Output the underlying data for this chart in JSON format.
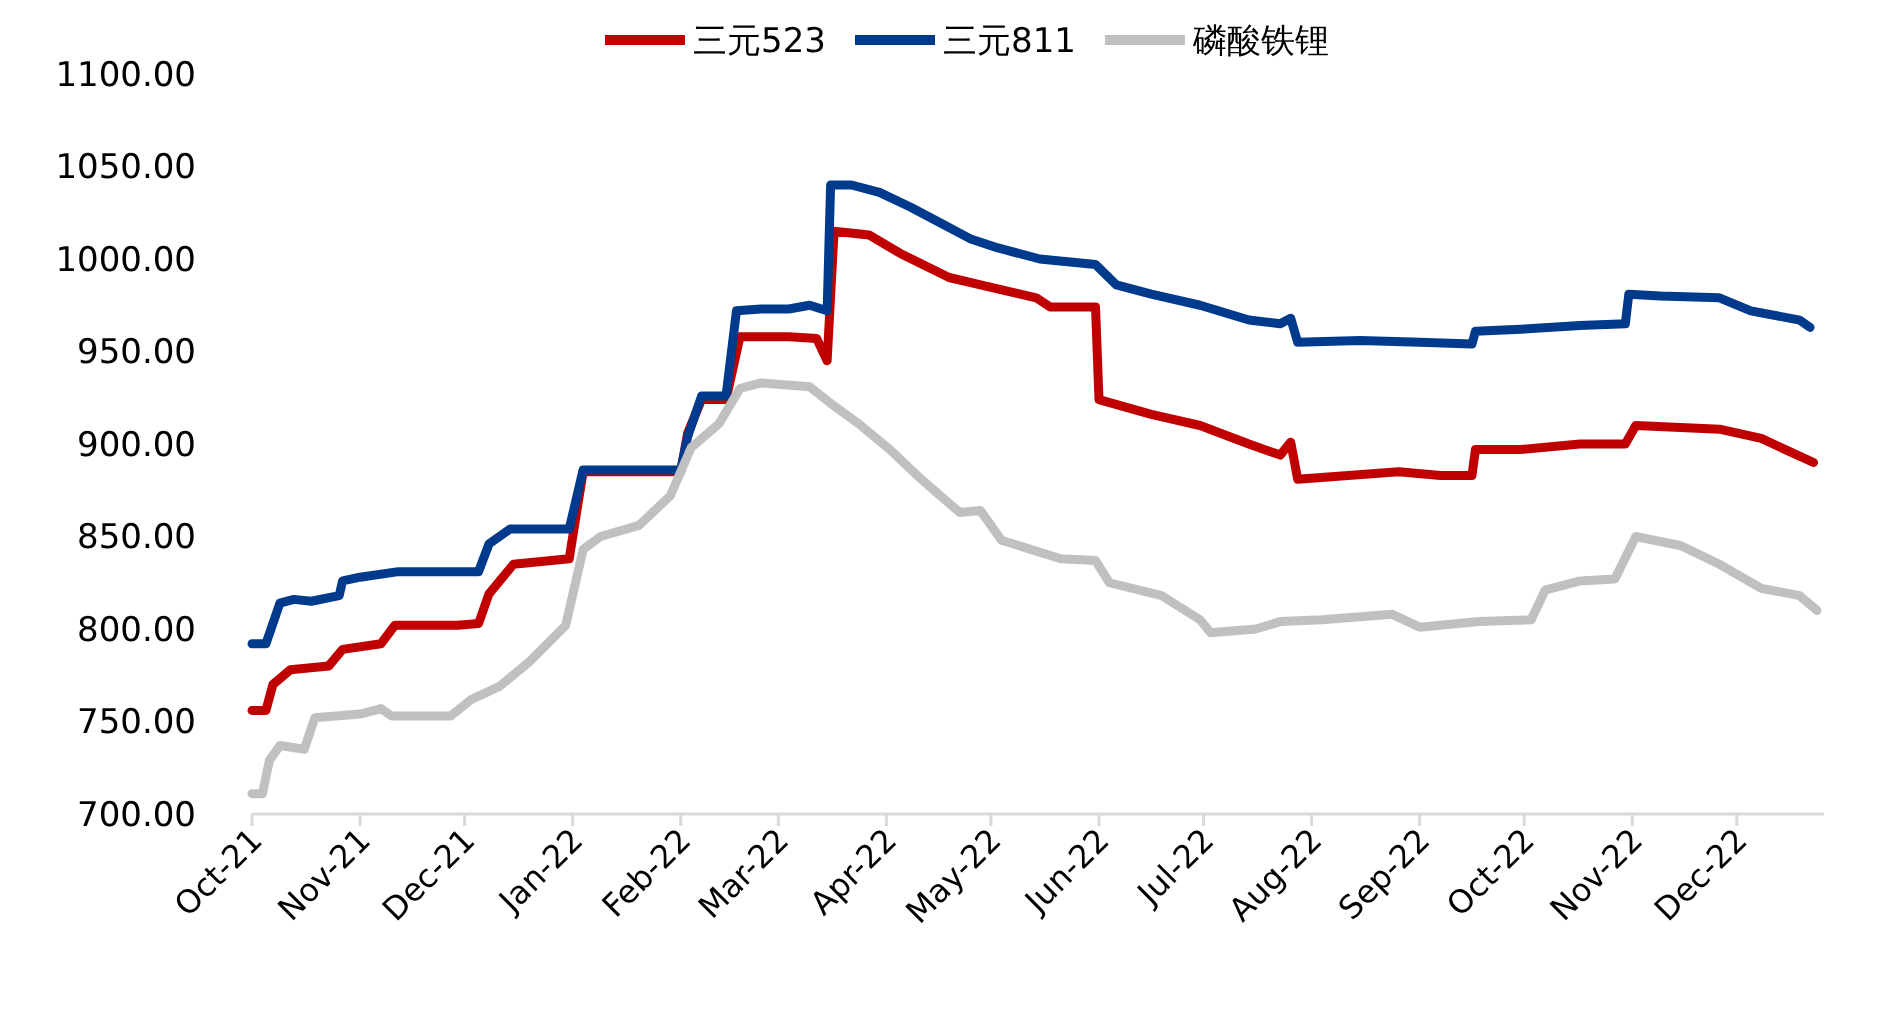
{
  "chart_data": {
    "type": "line",
    "xlim": [
      "2021-10-01",
      "2022-12-26"
    ],
    "xticks": [
      {
        "value": "2021-10-01",
        "label": "Oct-21"
      },
      {
        "value": "2021-11-01",
        "label": "Nov-21"
      },
      {
        "value": "2021-12-01",
        "label": "Dec-21"
      },
      {
        "value": "2022-01-01",
        "label": "Jan-22"
      },
      {
        "value": "2022-02-01",
        "label": "Feb-22"
      },
      {
        "value": "2022-03-01",
        "label": "Mar-22"
      },
      {
        "value": "2022-04-01",
        "label": "Apr-22"
      },
      {
        "value": "2022-05-01",
        "label": "May-22"
      },
      {
        "value": "2022-06-01",
        "label": "Jun-22"
      },
      {
        "value": "2022-07-01",
        "label": "Jul-22"
      },
      {
        "value": "2022-08-01",
        "label": "Aug-22"
      },
      {
        "value": "2022-09-01",
        "label": "Sep-22"
      },
      {
        "value": "2022-10-01",
        "label": "Oct-22"
      },
      {
        "value": "2022-11-01",
        "label": "Nov-22"
      },
      {
        "value": "2022-12-01",
        "label": "Dec-22"
      }
    ],
    "ylim": [
      700,
      1100
    ],
    "yticks": [
      {
        "value": 700,
        "label": "700.00"
      },
      {
        "value": 750,
        "label": "750.00"
      },
      {
        "value": 800,
        "label": "800.00"
      },
      {
        "value": 850,
        "label": "850.00"
      },
      {
        "value": 900,
        "label": "900.00"
      },
      {
        "value": 950,
        "label": "950.00"
      },
      {
        "value": 1000,
        "label": "1000.00"
      },
      {
        "value": 1050,
        "label": "1050.00"
      },
      {
        "value": 1100,
        "label": "1100.00"
      }
    ],
    "grid": false,
    "legend": "top",
    "marker": "none",
    "line_style": "solid",
    "series": [
      {
        "name": "三元523",
        "color": "#c00000",
        "x": [
          "2021-10-01",
          "2021-10-05",
          "2021-10-07",
          "2021-10-12",
          "2021-10-23",
          "2021-10-27",
          "2021-11-07",
          "2021-11-11",
          "2021-11-29",
          "2021-12-05",
          "2021-12-08",
          "2021-12-15",
          "2021-12-31",
          "2022-01-04",
          "2022-02-01",
          "2022-02-03",
          "2022-02-07",
          "2022-02-14",
          "2022-02-18",
          "2022-03-04",
          "2022-03-12",
          "2022-03-15",
          "2022-03-17",
          "2022-03-27",
          "2022-04-05",
          "2022-04-19",
          "2022-04-28",
          "2022-05-14",
          "2022-05-18",
          "2022-05-31",
          "2022-06-01",
          "2022-06-16",
          "2022-06-30",
          "2022-07-14",
          "2022-07-23",
          "2022-07-26",
          "2022-07-28",
          "2022-08-26",
          "2022-09-07",
          "2022-09-16",
          "2022-09-17",
          "2022-09-30",
          "2022-10-17",
          "2022-10-30",
          "2022-11-02",
          "2022-11-26",
          "2022-12-08",
          "2022-12-16",
          "2022-12-23"
        ],
        "values": [
          756,
          756,
          770,
          778,
          780,
          789,
          792,
          802,
          802,
          803,
          819,
          835,
          838,
          885,
          885,
          906,
          924,
          924,
          958,
          958,
          957,
          945,
          1015,
          1013,
          1003,
          990,
          986,
          979,
          974,
          974,
          924,
          916,
          910,
          900,
          894,
          901,
          881,
          885,
          883,
          883,
          897,
          897,
          900,
          900,
          910,
          908,
          903,
          896,
          890
        ]
      },
      {
        "name": "三元811",
        "color": "#003a8c",
        "x": [
          "2021-10-01",
          "2021-10-05",
          "2021-10-07",
          "2021-10-09",
          "2021-10-13",
          "2021-10-18",
          "2021-10-26",
          "2021-10-27",
          "2021-11-01",
          "2021-11-12",
          "2021-12-05",
          "2021-12-08",
          "2021-12-14",
          "2021-12-31",
          "2022-01-04",
          "2022-02-01",
          "2022-02-03",
          "2022-02-07",
          "2022-02-14",
          "2022-02-17",
          "2022-02-24",
          "2022-03-04",
          "2022-03-10",
          "2022-03-15",
          "2022-03-16",
          "2022-03-22",
          "2022-03-30",
          "2022-04-08",
          "2022-04-16",
          "2022-04-25",
          "2022-05-03",
          "2022-05-15",
          "2022-05-31",
          "2022-06-06",
          "2022-06-16",
          "2022-06-30",
          "2022-07-14",
          "2022-07-23",
          "2022-07-26",
          "2022-07-28",
          "2022-08-15",
          "2022-09-01",
          "2022-09-16",
          "2022-09-17",
          "2022-09-30",
          "2022-10-17",
          "2022-10-30",
          "2022-10-31",
          "2022-11-09",
          "2022-11-26",
          "2022-12-05",
          "2022-12-19",
          "2022-12-22"
        ],
        "values": [
          792,
          792,
          803,
          814,
          816,
          815,
          818,
          826,
          828,
          831,
          831,
          846,
          854,
          854,
          886,
          886,
          904,
          926,
          926,
          972,
          973,
          973,
          975,
          972,
          1040,
          1040,
          1036,
          1028,
          1020,
          1011,
          1006,
          1000,
          997,
          986,
          981,
          975,
          967,
          965,
          968,
          955,
          956,
          955,
          954,
          961,
          962,
          964,
          965,
          981,
          980,
          979,
          972,
          967,
          963
        ]
      },
      {
        "name": "磷酸铁锂",
        "color": "#c0c0c0",
        "x": [
          "2021-10-01",
          "2021-10-04",
          "2021-10-06",
          "2021-10-09",
          "2021-10-16",
          "2021-10-19",
          "2021-11-01",
          "2021-11-07",
          "2021-11-10",
          "2021-11-27",
          "2021-12-03",
          "2021-12-11",
          "2021-12-20",
          "2021-12-30",
          "2022-01-04",
          "2022-01-09",
          "2022-01-20",
          "2022-01-29",
          "2022-02-04",
          "2022-02-12",
          "2022-02-18",
          "2022-02-24",
          "2022-03-10",
          "2022-03-16",
          "2022-03-24",
          "2022-04-02",
          "2022-04-11",
          "2022-04-22",
          "2022-04-28",
          "2022-05-04",
          "2022-05-21",
          "2022-05-31",
          "2022-06-04",
          "2022-06-19",
          "2022-06-30",
          "2022-07-03",
          "2022-07-16",
          "2022-07-23",
          "2022-08-04",
          "2022-08-24",
          "2022-09-01",
          "2022-09-18",
          "2022-10-03",
          "2022-10-07",
          "2022-10-17",
          "2022-10-27",
          "2022-11-02",
          "2022-11-15",
          "2022-11-26",
          "2022-12-08",
          "2022-12-19",
          "2022-12-24"
        ],
        "values": [
          711,
          711,
          729,
          737,
          735,
          752,
          754,
          757,
          753,
          753,
          762,
          769,
          783,
          802,
          843,
          850,
          856,
          872,
          898,
          911,
          930,
          933,
          931,
          922,
          911,
          897,
          881,
          863,
          864,
          848,
          838,
          837,
          825,
          818,
          805,
          798,
          800,
          804,
          805,
          808,
          801,
          804,
          805,
          821,
          826,
          827,
          850,
          845,
          835,
          822,
          818,
          810
        ]
      }
    ]
  }
}
